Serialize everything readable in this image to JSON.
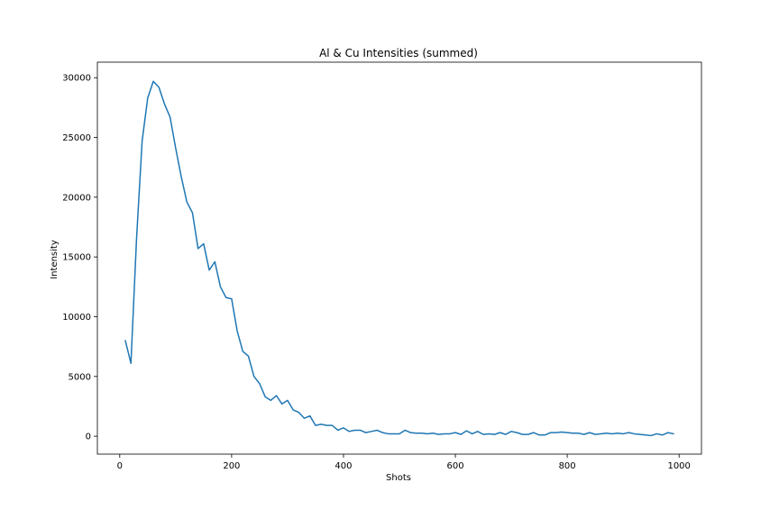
{
  "chart_data": {
    "type": "line",
    "title": "Al & Cu Intensities (summed)",
    "xlabel": "Shots",
    "ylabel": "Intensity",
    "xlim": [
      -40,
      1040
    ],
    "ylim": [
      -1500,
      31300
    ],
    "x_ticks": [
      0,
      200,
      400,
      600,
      800,
      1000
    ],
    "y_ticks": [
      0,
      5000,
      10000,
      15000,
      20000,
      25000,
      30000
    ],
    "grid": false,
    "line_color": "#1f77b4",
    "series": [
      {
        "x": [
          10,
          20,
          30,
          40,
          50,
          60,
          70,
          80,
          90,
          100,
          110,
          120,
          130,
          140,
          150,
          160,
          170,
          180,
          190,
          200,
          210,
          220,
          230,
          240,
          250,
          260,
          270,
          280,
          290,
          300,
          310,
          320,
          330,
          340,
          350,
          360,
          370,
          380,
          390,
          400,
          410,
          420,
          430,
          440,
          450,
          460,
          470,
          480,
          490,
          500,
          510,
          520,
          530,
          540,
          550,
          560,
          570,
          580,
          590,
          600,
          610,
          620,
          630,
          640,
          650,
          660,
          670,
          680,
          690,
          700,
          710,
          720,
          730,
          740,
          750,
          760,
          770,
          780,
          790,
          800,
          810,
          820,
          830,
          840,
          850,
          860,
          870,
          880,
          890,
          900,
          910,
          920,
          930,
          940,
          950,
          960,
          970,
          980,
          990
        ],
        "values": [
          8000,
          6100,
          16500,
          24700,
          28300,
          29700,
          29200,
          27800,
          26700,
          24100,
          21700,
          19600,
          18700,
          15700,
          16100,
          13900,
          14600,
          12500,
          11600,
          11500,
          8800,
          7100,
          6700,
          5000,
          4400,
          3300,
          3000,
          3400,
          2700,
          3000,
          2200,
          2000,
          1500,
          1700,
          900,
          1000,
          900,
          900,
          500,
          700,
          400,
          500,
          500,
          300,
          400,
          500,
          300,
          200,
          200,
          200,
          500,
          300,
          250,
          250,
          200,
          250,
          150,
          200,
          200,
          300,
          150,
          450,
          200,
          400,
          150,
          200,
          150,
          300,
          150,
          400,
          300,
          150,
          150,
          300,
          100,
          100,
          300,
          300,
          350,
          300,
          250,
          250,
          150,
          300,
          150,
          200,
          250,
          200,
          250,
          200,
          300,
          200,
          150,
          100,
          50,
          200,
          100,
          300,
          200
        ]
      }
    ]
  }
}
